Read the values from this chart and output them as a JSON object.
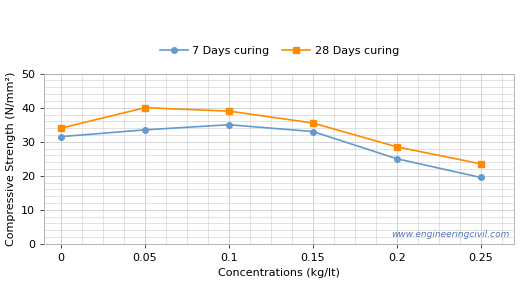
{
  "x": [
    0,
    0.05,
    0.1,
    0.15,
    0.2,
    0.25
  ],
  "y_7days": [
    31.5,
    33.5,
    35.0,
    33.0,
    25.0,
    19.5
  ],
  "y_28days": [
    34.0,
    40.0,
    39.0,
    35.5,
    28.5,
    23.5
  ],
  "line_color_7days": "#6699CC",
  "line_color_28days": "#FF8C00",
  "marker_7days": "o",
  "marker_28days": "s",
  "label_7days": "7 Days curing",
  "label_28days": "28 Days curing",
  "xlabel": "Concentrations (kg/lt)",
  "ylabel": "Compressive Strength (N/mm²)",
  "xlim": [
    -0.01,
    0.27
  ],
  "ylim": [
    0,
    50
  ],
  "yticks": [
    0,
    10,
    20,
    30,
    40,
    50
  ],
  "xticks": [
    0,
    0.05,
    0.1,
    0.15,
    0.2,
    0.25
  ],
  "watermark": "www.engineeringcivil.com",
  "watermark_color": "#5577BB",
  "grid_color": "#cccccc",
  "background_color": "#ffffff"
}
